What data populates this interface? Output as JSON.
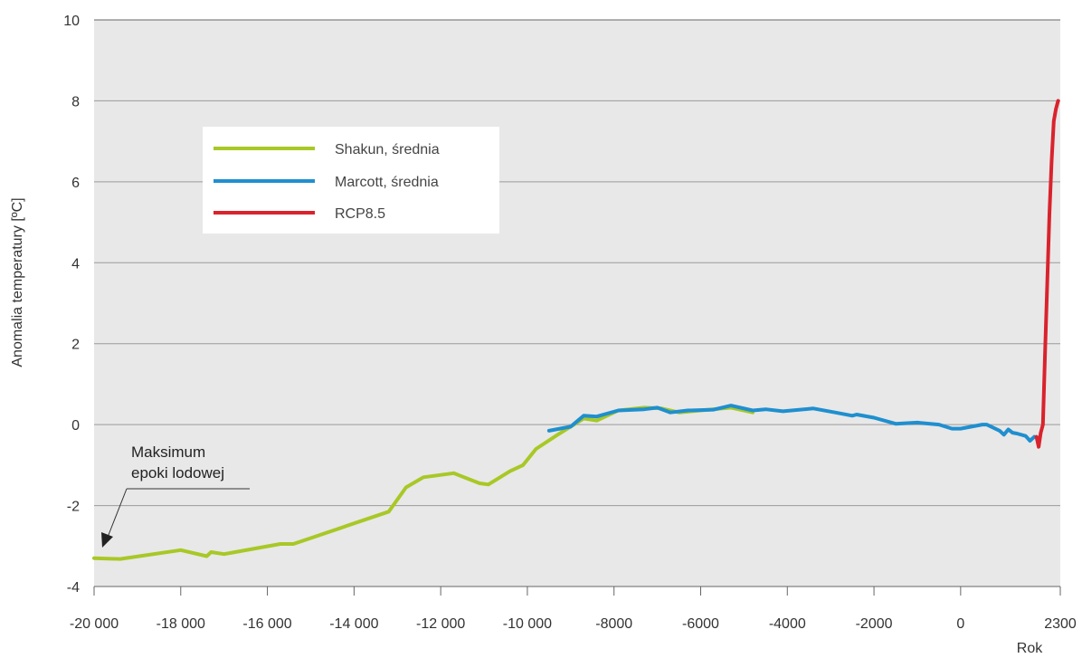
{
  "chart_data": {
    "type": "line",
    "ylabel": "Anomalia temperatury [ºC]",
    "xlabel": "Rok",
    "xlim": [
      -20000,
      2300
    ],
    "ylim": [
      -4,
      10
    ],
    "x_ticks": [
      -20000,
      -18000,
      -16000,
      -14000,
      -12000,
      -10000,
      -8000,
      -6000,
      -4000,
      -2000,
      0,
      2300
    ],
    "x_tick_labels": [
      "-20 000",
      "-18 000",
      "-16 000",
      "-14 000",
      "-12 000",
      "-10 000",
      "-8000",
      "-6000",
      "-4000",
      "-2000",
      "0",
      "2300"
    ],
    "y_ticks": [
      -4,
      -2,
      0,
      2,
      4,
      6,
      8,
      10
    ],
    "y_tick_labels": [
      "-4",
      "-2",
      "0",
      "2",
      "4",
      "6",
      "8",
      "10"
    ],
    "grid": "horizontal",
    "legend": "upper-left",
    "series": [
      {
        "name": "Shakun, średnia",
        "color": "#a8c826",
        "points": [
          [
            -20000,
            -3.3
          ],
          [
            -19400,
            -3.32
          ],
          [
            -18000,
            -3.1
          ],
          [
            -17400,
            -3.25
          ],
          [
            -17300,
            -3.15
          ],
          [
            -17000,
            -3.2
          ],
          [
            -15700,
            -2.95
          ],
          [
            -15400,
            -2.95
          ],
          [
            -13200,
            -2.15
          ],
          [
            -12800,
            -1.55
          ],
          [
            -12400,
            -1.3
          ],
          [
            -11700,
            -1.2
          ],
          [
            -11100,
            -1.45
          ],
          [
            -10900,
            -1.48
          ],
          [
            -10400,
            -1.15
          ],
          [
            -10100,
            -1.0
          ],
          [
            -9800,
            -0.6
          ],
          [
            -9300,
            -0.25
          ],
          [
            -8700,
            0.15
          ],
          [
            -8400,
            0.1
          ],
          [
            -7900,
            0.35
          ],
          [
            -7300,
            0.42
          ],
          [
            -6900,
            0.4
          ],
          [
            -6500,
            0.3
          ],
          [
            -6000,
            0.35
          ],
          [
            -5300,
            0.42
          ],
          [
            -5000,
            0.35
          ],
          [
            -4800,
            0.3
          ]
        ]
      },
      {
        "name": "Marcott, średnia",
        "color": "#1f8fcf",
        "points": [
          [
            -9500,
            -0.15
          ],
          [
            -9000,
            -0.05
          ],
          [
            -8700,
            0.22
          ],
          [
            -8400,
            0.2
          ],
          [
            -7900,
            0.35
          ],
          [
            -7300,
            0.38
          ],
          [
            -7000,
            0.42
          ],
          [
            -6700,
            0.3
          ],
          [
            -6300,
            0.35
          ],
          [
            -5700,
            0.37
          ],
          [
            -5300,
            0.47
          ],
          [
            -4800,
            0.35
          ],
          [
            -4500,
            0.38
          ],
          [
            -4100,
            0.33
          ],
          [
            -3400,
            0.4
          ],
          [
            -2900,
            0.3
          ],
          [
            -2500,
            0.22
          ],
          [
            -2400,
            0.25
          ],
          [
            -2000,
            0.17
          ],
          [
            -1500,
            0.02
          ],
          [
            -1000,
            0.05
          ],
          [
            -500,
            0.0
          ],
          [
            -200,
            -0.1
          ],
          [
            0,
            -0.1
          ],
          [
            500,
            0.0
          ],
          [
            600,
            0.0
          ],
          [
            900,
            -0.15
          ],
          [
            1000,
            -0.25
          ],
          [
            1100,
            -0.12
          ],
          [
            1200,
            -0.2
          ],
          [
            1300,
            -0.22
          ],
          [
            1500,
            -0.28
          ],
          [
            1600,
            -0.4
          ],
          [
            1700,
            -0.3
          ]
        ]
      },
      {
        "name": "RCP8.5",
        "color": "#d9232d",
        "points": [
          [
            1750,
            -0.3
          ],
          [
            1800,
            -0.55
          ],
          [
            1850,
            -0.2
          ],
          [
            1900,
            0.0
          ],
          [
            1950,
            1.8
          ],
          [
            2000,
            3.5
          ],
          [
            2050,
            5.2
          ],
          [
            2100,
            6.5
          ],
          [
            2150,
            7.5
          ],
          [
            2200,
            7.8
          ],
          [
            2250,
            8.0
          ]
        ]
      }
    ],
    "annotation": {
      "lines": [
        "Maksimum",
        "epoki lodowej"
      ],
      "x": -20000,
      "y": -3.1
    }
  }
}
